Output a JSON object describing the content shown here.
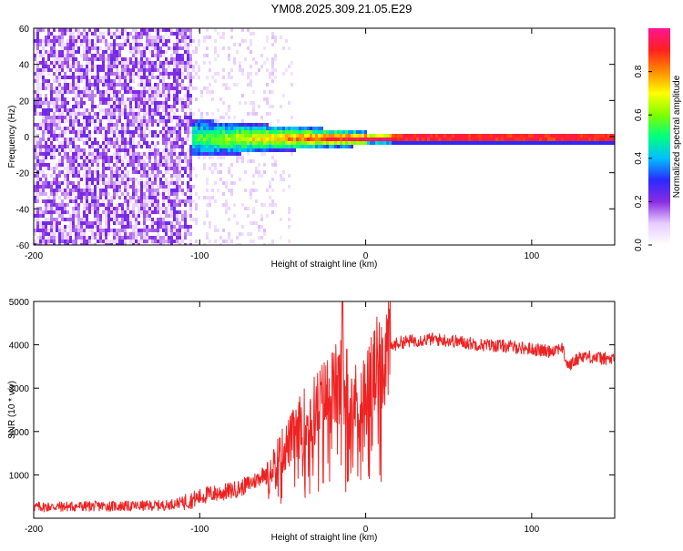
{
  "title": "YM08.2025.309.21.05.E29",
  "colors": {
    "spectrum_low": "#7b2ff7",
    "spectrum_band": "#ff2d2d",
    "snr_line": "#ee2222",
    "axis": "#000000"
  },
  "chart_data": [
    {
      "type": "heatmap",
      "title": "YM08.2025.309.21.05.E29",
      "xlabel": "Height of straight line (km)",
      "ylabel": "Frequency (Hz)",
      "xlim": [
        -200,
        150
      ],
      "ylim": [
        -60,
        60
      ],
      "xticks": [
        -200,
        -100,
        0,
        100
      ],
      "yticks": [
        60,
        40,
        20,
        0,
        -20,
        -40,
        -60
      ],
      "colorbar": {
        "label": "Normalized spectral amplitude",
        "range": [
          0,
          1
        ],
        "ticks": [
          "0.0",
          "0.2",
          "0.4",
          "0.6",
          "0.8"
        ],
        "colormap": [
          "#ffffff",
          "#e6ccff",
          "#8a2be2",
          "#2a2aff",
          "#00bfff",
          "#00ff7f",
          "#7fff00",
          "#ffff00",
          "#ff8c00",
          "#ff2020",
          "#ff1493"
        ]
      },
      "band": {
        "center_frequency": 0,
        "start_height": -105,
        "description": "narrow high-amplitude band near 0 Hz from about -100 km onward, broad low-amplitude noise below -100 km"
      }
    },
    {
      "type": "line",
      "xlabel": "Height of straight line (km)",
      "ylabel": "SNR (10 * v/v)",
      "xlim": [
        -200,
        150
      ],
      "ylim": [
        0,
        5000
      ],
      "xticks": [
        -200,
        -100,
        0,
        100
      ],
      "yticks": [
        1000,
        2000,
        3000,
        4000,
        5000
      ],
      "series": [
        {
          "name": "SNR",
          "x": [
            -200,
            -180,
            -160,
            -140,
            -120,
            -105,
            -95,
            -85,
            -75,
            -65,
            -55,
            -45,
            -38,
            -30,
            -24,
            -18,
            -14,
            -10,
            -5,
            0,
            5,
            10,
            15,
            20,
            30,
            40,
            50,
            60,
            70,
            80,
            90,
            100,
            110,
            118,
            122,
            130,
            140,
            150
          ],
          "y": [
            260,
            270,
            280,
            280,
            300,
            420,
            550,
            600,
            700,
            900,
            1300,
            1800,
            2200,
            2500,
            2800,
            3000,
            3100,
            3000,
            2600,
            2900,
            3300,
            3700,
            3950,
            4050,
            4100,
            4130,
            4100,
            4050,
            4000,
            3980,
            3950,
            3900,
            3850,
            3950,
            3500,
            3750,
            3700,
            3650
          ]
        }
      ],
      "annotations": [
        {
          "x": -14,
          "y": 5000,
          "label": "spike to top of axis"
        }
      ]
    }
  ]
}
